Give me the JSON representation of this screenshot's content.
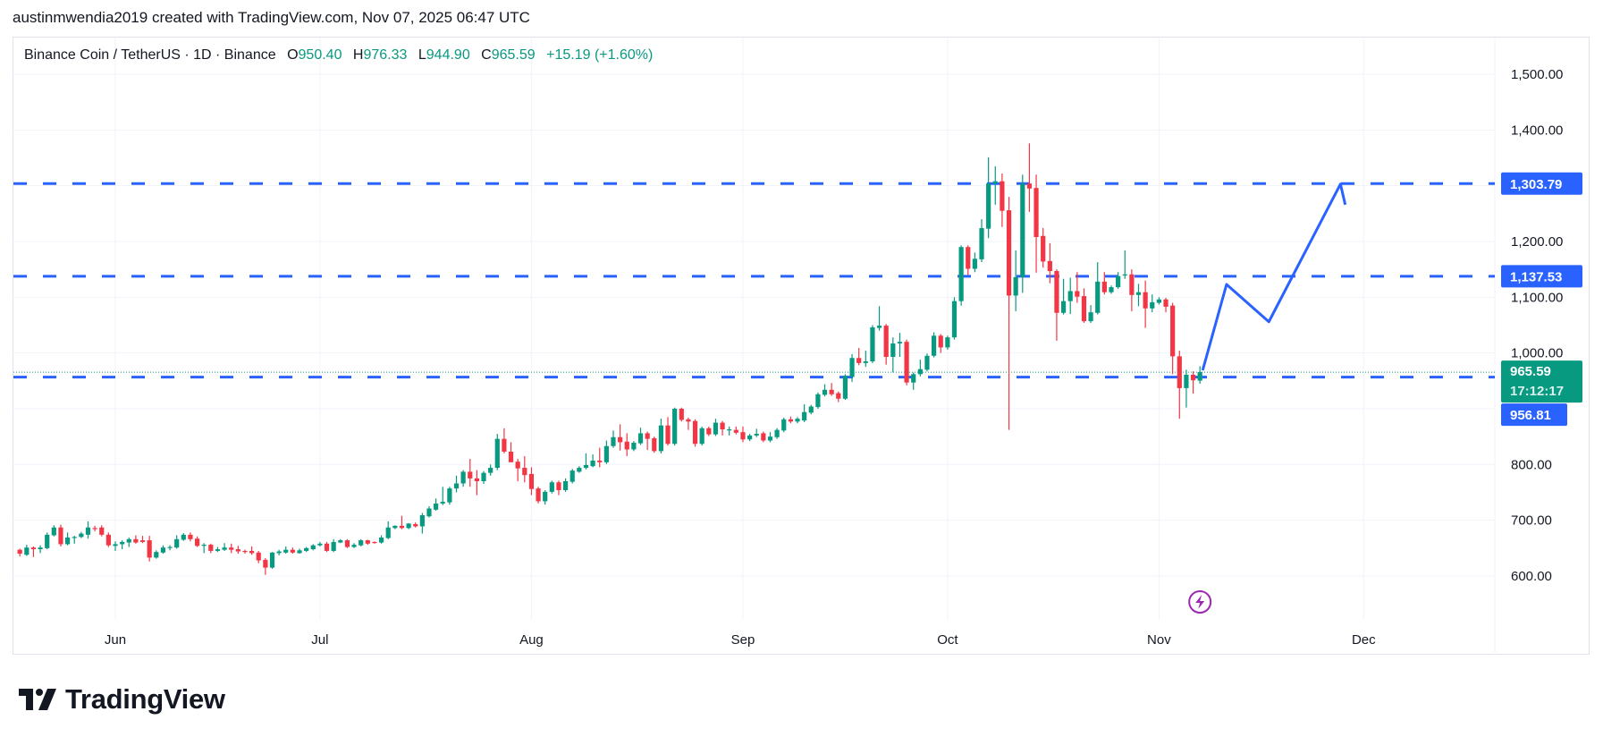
{
  "header": {
    "attribution": "austinmwendia2019 created with TradingView.com, Nov 07, 2025 06:47 UTC"
  },
  "legend": {
    "symbol": "Binance Coin / TetherUS · 1D · Binance",
    "open_label": "O",
    "open": "950.40",
    "high_label": "H",
    "high": "976.33",
    "low_label": "L",
    "low": "944.90",
    "close_label": "C",
    "close": "965.59",
    "change": "+15.19 (+1.60%)"
  },
  "price_axis": {
    "labels": [
      "1,500.00",
      "1,400.00",
      "1,200.00",
      "1,100.00",
      "1,000.00",
      "800.00",
      "700.00",
      "600.00"
    ]
  },
  "badges": {
    "line1": "1,303.79",
    "line2": "1,137.53",
    "line3": "956.81",
    "last_price": "965.59",
    "countdown": "17:12:17"
  },
  "time_axis": {
    "labels": [
      "Jun",
      "Jul",
      "Aug",
      "Sep",
      "Oct",
      "Nov",
      "Dec"
    ]
  },
  "logo": {
    "text": "TradingView"
  },
  "icons": {
    "event": "lightning-icon"
  },
  "colors": {
    "up": "#089981",
    "down": "#f23645",
    "drawing": "#2962ff",
    "grid": "#f0f3fa",
    "event": "#9c27b0"
  },
  "chart_data": {
    "type": "candlestick",
    "title": "Binance Coin / TetherUS · 1D · Binance",
    "first_date": "2025-05-18",
    "last_date": "2025-11-07",
    "interval": "1D",
    "ylim": [
      520,
      1560
    ],
    "yticks": [
      600,
      700,
      800,
      900,
      1000,
      1100,
      1200,
      1300,
      1400,
      1500
    ],
    "grid": true,
    "month_ticks": [
      {
        "label": "Jun",
        "index": 14
      },
      {
        "label": "Jul",
        "index": 44
      },
      {
        "label": "Aug",
        "index": 75
      },
      {
        "label": "Sep",
        "index": 106
      },
      {
        "label": "Oct",
        "index": 136
      },
      {
        "label": "Nov",
        "index": 167
      },
      {
        "label": "Dec",
        "index": 197
      }
    ],
    "candles_ohlc": [
      [
        647,
        649,
        635,
        640
      ],
      [
        638,
        656,
        636,
        651
      ],
      [
        651,
        653,
        634,
        648
      ],
      [
        648,
        655,
        641,
        651
      ],
      [
        650,
        678,
        648,
        674
      ],
      [
        673,
        691,
        671,
        687
      ],
      [
        687,
        692,
        653,
        657
      ],
      [
        657,
        678,
        655,
        669
      ],
      [
        669,
        672,
        658,
        670
      ],
      [
        670,
        679,
        668,
        676
      ],
      [
        674,
        698,
        667,
        687
      ],
      [
        686,
        690,
        680,
        684
      ],
      [
        687,
        691,
        671,
        674
      ],
      [
        674,
        678,
        652,
        655
      ],
      [
        654,
        662,
        645,
        657
      ],
      [
        657,
        664,
        648,
        661
      ],
      [
        660,
        669,
        652,
        666
      ],
      [
        666,
        673,
        658,
        660
      ],
      [
        664,
        672,
        659,
        661
      ],
      [
        664,
        672,
        626,
        633
      ],
      [
        633,
        646,
        631,
        643
      ],
      [
        642,
        655,
        640,
        651
      ],
      [
        651,
        655,
        646,
        652
      ],
      [
        651,
        673,
        649,
        666
      ],
      [
        665,
        677,
        663,
        674
      ],
      [
        674,
        678,
        662,
        666
      ],
      [
        667,
        671,
        652,
        654
      ],
      [
        654,
        659,
        641,
        656
      ],
      [
        656,
        658,
        641,
        645
      ],
      [
        645,
        652,
        643,
        648
      ],
      [
        647,
        659,
        645,
        651
      ],
      [
        651,
        658,
        641,
        647
      ],
      [
        648,
        654,
        640,
        644
      ],
      [
        645,
        647,
        640,
        643
      ],
      [
        645,
        653,
        638,
        641
      ],
      [
        642,
        645,
        623,
        628
      ],
      [
        629,
        632,
        602,
        615
      ],
      [
        615,
        643,
        613,
        642
      ],
      [
        641,
        647,
        637,
        644
      ],
      [
        642,
        653,
        640,
        647
      ],
      [
        647,
        651,
        640,
        642
      ],
      [
        641,
        649,
        640,
        646
      ],
      [
        645,
        652,
        643,
        650
      ],
      [
        648,
        657,
        646,
        655
      ],
      [
        655,
        661,
        653,
        658
      ],
      [
        658,
        661,
        643,
        645
      ],
      [
        645,
        666,
        643,
        661
      ],
      [
        660,
        666,
        659,
        664
      ],
      [
        664,
        666,
        650,
        652
      ],
      [
        652,
        659,
        650,
        656
      ],
      [
        655,
        666,
        653,
        664
      ],
      [
        664,
        665,
        656,
        658
      ],
      [
        661,
        662,
        658,
        660
      ],
      [
        660,
        673,
        658,
        669
      ],
      [
        668,
        698,
        666,
        687
      ],
      [
        686,
        691,
        684,
        690
      ],
      [
        690,
        708,
        684,
        686
      ],
      [
        686,
        695,
        684,
        694
      ],
      [
        693,
        696,
        687,
        689
      ],
      [
        689,
        713,
        676,
        709
      ],
      [
        707,
        725,
        705,
        721
      ],
      [
        719,
        739,
        717,
        730
      ],
      [
        730,
        760,
        727,
        733
      ],
      [
        732,
        760,
        728,
        757
      ],
      [
        757,
        780,
        750,
        766
      ],
      [
        766,
        790,
        760,
        787
      ],
      [
        787,
        810,
        760,
        775
      ],
      [
        775,
        790,
        745,
        770
      ],
      [
        770,
        788,
        765,
        785
      ],
      [
        785,
        800,
        780,
        794
      ],
      [
        794,
        855,
        790,
        846
      ],
      [
        846,
        865,
        820,
        823
      ],
      [
        823,
        840,
        810,
        804
      ],
      [
        805,
        810,
        770,
        793
      ],
      [
        794,
        815,
        768,
        781
      ],
      [
        783,
        795,
        745,
        756
      ],
      [
        757,
        760,
        730,
        734
      ],
      [
        734,
        754,
        728,
        751
      ],
      [
        751,
        771,
        748,
        768
      ],
      [
        768,
        771,
        745,
        754
      ],
      [
        754,
        775,
        751,
        770
      ],
      [
        769,
        792,
        766,
        789
      ],
      [
        787,
        797,
        785,
        794
      ],
      [
        794,
        820,
        791,
        799
      ],
      [
        797,
        818,
        795,
        807
      ],
      [
        807,
        830,
        795,
        804
      ],
      [
        804,
        843,
        801,
        833
      ],
      [
        833,
        861,
        830,
        849
      ],
      [
        849,
        872,
        825,
        840
      ],
      [
        841,
        856,
        815,
        827
      ],
      [
        827,
        842,
        824,
        839
      ],
      [
        838,
        866,
        835,
        856
      ],
      [
        856,
        859,
        826,
        846
      ],
      [
        847,
        850,
        821,
        824
      ],
      [
        824,
        882,
        820,
        870
      ],
      [
        870,
        885,
        834,
        837
      ],
      [
        837,
        902,
        834,
        900
      ],
      [
        900,
        902,
        877,
        880
      ],
      [
        881,
        884,
        862,
        877
      ],
      [
        878,
        881,
        832,
        837
      ],
      [
        837,
        868,
        834,
        865
      ],
      [
        865,
        868,
        851,
        854
      ],
      [
        854,
        882,
        851,
        875
      ],
      [
        875,
        878,
        852,
        863
      ],
      [
        863,
        868,
        852,
        863
      ],
      [
        862,
        868,
        854,
        857
      ],
      [
        858,
        868,
        840,
        845
      ],
      [
        845,
        855,
        842,
        852
      ],
      [
        852,
        864,
        849,
        855
      ],
      [
        856,
        859,
        840,
        843
      ],
      [
        843,
        858,
        840,
        850
      ],
      [
        849,
        865,
        846,
        862
      ],
      [
        861,
        884,
        858,
        881
      ],
      [
        881,
        886,
        874,
        877
      ],
      [
        877,
        885,
        874,
        882
      ],
      [
        879,
        908,
        876,
        894
      ],
      [
        893,
        907,
        890,
        904
      ],
      [
        903,
        929,
        900,
        926
      ],
      [
        925,
        944,
        922,
        934
      ],
      [
        934,
        946,
        923,
        926
      ],
      [
        928,
        931,
        912,
        918
      ],
      [
        918,
        962,
        916,
        959
      ],
      [
        957,
        998,
        948,
        991
      ],
      [
        991,
        1009,
        978,
        982
      ],
      [
        982,
        1004,
        975,
        985
      ],
      [
        985,
        1050,
        982,
        1046
      ],
      [
        1045,
        1084,
        1040,
        1049
      ],
      [
        1049,
        1052,
        979,
        993
      ],
      [
        993,
        1028,
        965,
        1017
      ],
      [
        1017,
        1036,
        993,
        1020
      ],
      [
        1020,
        1024,
        942,
        947
      ],
      [
        947,
        965,
        934,
        962
      ],
      [
        962,
        988,
        958,
        971
      ],
      [
        970,
        999,
        967,
        995
      ],
      [
        995,
        1037,
        992,
        1031
      ],
      [
        1031,
        1034,
        1000,
        1010
      ],
      [
        1010,
        1031,
        1006,
        1028
      ],
      [
        1028,
        1100,
        1024,
        1093
      ],
      [
        1093,
        1193,
        1085,
        1190
      ],
      [
        1190,
        1193,
        1140,
        1151
      ],
      [
        1151,
        1180,
        1145,
        1169
      ],
      [
        1168,
        1240,
        1163,
        1224
      ],
      [
        1223,
        1351,
        1206,
        1304
      ],
      [
        1304,
        1335,
        1266,
        1308
      ],
      [
        1308,
        1322,
        1226,
        1255
      ],
      [
        1256,
        1280,
        862,
        1103
      ],
      [
        1103,
        1184,
        1075,
        1136
      ],
      [
        1136,
        1320,
        1108,
        1304
      ],
      [
        1304,
        1376,
        1253,
        1295
      ],
      [
        1296,
        1320,
        1144,
        1208
      ],
      [
        1210,
        1224,
        1153,
        1164
      ],
      [
        1165,
        1197,
        1125,
        1147
      ],
      [
        1147,
        1150,
        1022,
        1072
      ],
      [
        1072,
        1133,
        1069,
        1093
      ],
      [
        1093,
        1135,
        1070,
        1111
      ],
      [
        1111,
        1145,
        1090,
        1101
      ],
      [
        1102,
        1116,
        1054,
        1057
      ],
      [
        1057,
        1086,
        1054,
        1073
      ],
      [
        1072,
        1163,
        1069,
        1128
      ],
      [
        1128,
        1145,
        1105,
        1109
      ],
      [
        1109,
        1121,
        1106,
        1118
      ],
      [
        1118,
        1145,
        1115,
        1138
      ],
      [
        1140,
        1184,
        1133,
        1141
      ],
      [
        1141,
        1150,
        1075,
        1104
      ],
      [
        1104,
        1124,
        1084,
        1109
      ],
      [
        1109,
        1130,
        1045,
        1080
      ],
      [
        1080,
        1105,
        1073,
        1091
      ],
      [
        1090,
        1100,
        1087,
        1096
      ],
      [
        1096,
        1099,
        1073,
        1083
      ],
      [
        1085,
        1090,
        962,
        994
      ],
      [
        994,
        1004,
        882,
        937
      ],
      [
        937,
        970,
        902,
        961
      ],
      [
        961,
        967,
        927,
        951
      ],
      [
        950.4,
        976.33,
        944.9,
        965.59
      ]
    ],
    "horizontal_lines": [
      1303.79,
      1137.53,
      956.81
    ],
    "last_price": 965.59,
    "projection_path": [
      [
        173.4,
        969
      ],
      [
        176.9,
        1123
      ],
      [
        183.1,
        1056
      ],
      [
        193.6,
        1303
      ],
      [
        194.3,
        1266
      ]
    ],
    "event_marker_index": 173
  }
}
